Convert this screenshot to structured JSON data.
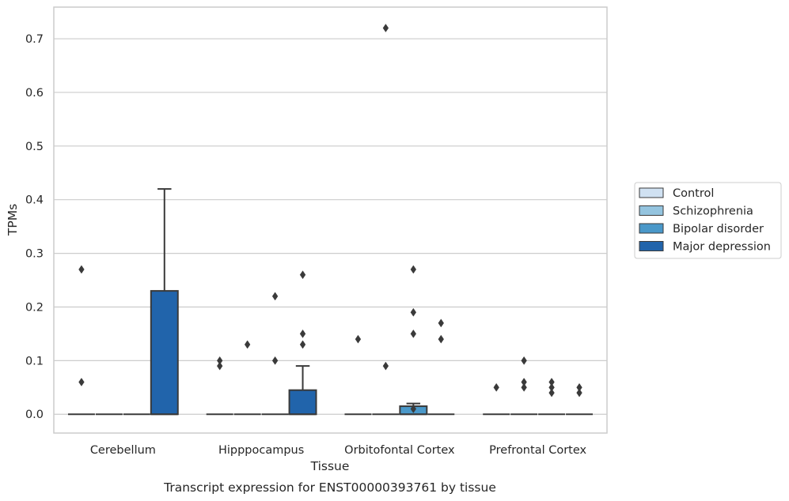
{
  "chart_data": {
    "type": "box",
    "title": "Transcript expression for ENST00000393761 by tissue",
    "xlabel": "Tissue",
    "ylabel": "TPMs",
    "categories": [
      "Cerebellum",
      "Hipppocampus",
      "Orbitofontal Cortex",
      "Prefrontal Cortex"
    ],
    "ylim": [
      -0.035,
      0.759
    ],
    "yticks": [
      "0.0",
      "0.1",
      "0.2",
      "0.3",
      "0.4",
      "0.5",
      "0.6",
      "0.7"
    ],
    "grid": "horizontal",
    "legend_position": "right",
    "colors": {
      "Control": "#d0e1f2",
      "Schizophrenia": "#94c4df",
      "Bipolar disorder": "#4a98c9",
      "Major depression": "#2164ab",
      "edge": "#3a3a3a",
      "grid": "#cccccc",
      "frame": "#cccccc"
    },
    "series": [
      {
        "name": "Control",
        "boxes": [
          {
            "q1": 0,
            "median": 0,
            "q3": 0,
            "whislo": 0,
            "whishi": 0,
            "fliers": [
              0.06,
              0.27
            ]
          },
          {
            "q1": 0,
            "median": 0,
            "q3": 0,
            "whislo": 0,
            "whishi": 0,
            "fliers": [
              0.09,
              0.1
            ]
          },
          {
            "q1": 0,
            "median": 0,
            "q3": 0,
            "whislo": 0,
            "whishi": 0,
            "fliers": [
              0.14
            ]
          },
          {
            "q1": 0,
            "median": 0,
            "q3": 0,
            "whislo": 0,
            "whishi": 0,
            "fliers": [
              0.05
            ]
          }
        ]
      },
      {
        "name": "Schizophrenia",
        "boxes": [
          {
            "q1": 0,
            "median": 0,
            "q3": 0,
            "whislo": 0,
            "whishi": 0,
            "fliers": []
          },
          {
            "q1": 0,
            "median": 0,
            "q3": 0,
            "whislo": 0,
            "whishi": 0,
            "fliers": [
              0.13
            ]
          },
          {
            "q1": 0,
            "median": 0,
            "q3": 0,
            "whislo": 0,
            "whishi": 0,
            "fliers": [
              0.09,
              0.72
            ]
          },
          {
            "q1": 0,
            "median": 0,
            "q3": 0,
            "whislo": 0,
            "whishi": 0,
            "fliers": [
              0.05,
              0.06,
              0.1
            ]
          }
        ]
      },
      {
        "name": "Bipolar disorder",
        "boxes": [
          {
            "q1": 0,
            "median": 0,
            "q3": 0,
            "whislo": 0,
            "whishi": 0,
            "fliers": []
          },
          {
            "q1": 0,
            "median": 0,
            "q3": 0,
            "whislo": 0,
            "whishi": 0,
            "fliers": [
              0.1,
              0.22
            ]
          },
          {
            "q1": 0,
            "median": 0,
            "q3": 0.015,
            "whislo": 0,
            "whishi": 0.02,
            "fliers": [
              0.01,
              0.15,
              0.19,
              0.27
            ]
          },
          {
            "q1": 0,
            "median": 0,
            "q3": 0,
            "whislo": 0,
            "whishi": 0,
            "fliers": [
              0.04,
              0.05,
              0.06
            ]
          }
        ]
      },
      {
        "name": "Major depression",
        "boxes": [
          {
            "q1": 0,
            "median": 0,
            "q3": 0.23,
            "whislo": 0,
            "whishi": 0.42,
            "fliers": []
          },
          {
            "q1": 0,
            "median": 0,
            "q3": 0.045,
            "whislo": 0,
            "whishi": 0.09,
            "fliers": [
              0.13,
              0.15,
              0.26
            ]
          },
          {
            "q1": 0,
            "median": 0,
            "q3": 0,
            "whislo": 0,
            "whishi": 0,
            "fliers": [
              0.14,
              0.17
            ]
          },
          {
            "q1": 0,
            "median": 0,
            "q3": 0,
            "whislo": 0,
            "whishi": 0,
            "fliers": [
              0.04,
              0.05
            ]
          }
        ]
      }
    ]
  }
}
